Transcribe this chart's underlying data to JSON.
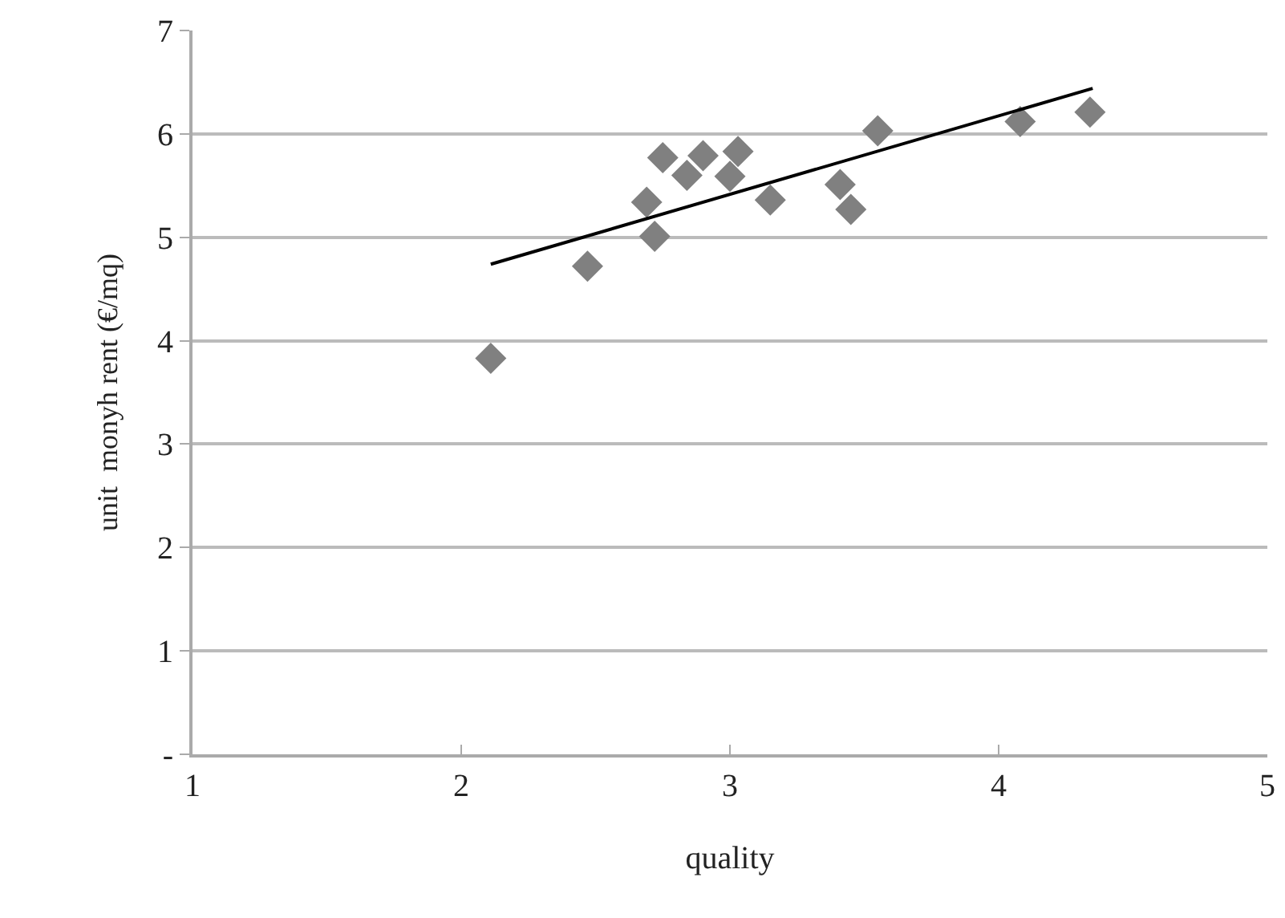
{
  "chart_data": {
    "type": "scatter",
    "xlabel": "quality",
    "ylabel": "unit  monyh rent (€/mq)",
    "xlim": [
      1,
      5
    ],
    "xticks": [
      1,
      2,
      3,
      4,
      5
    ],
    "ylim": [
      0,
      7
    ],
    "yticks": [
      {
        "value": 0,
        "label": "-"
      },
      1,
      2,
      3,
      4,
      5,
      6,
      7
    ],
    "grid": "y",
    "marker": "diamond",
    "series": [
      {
        "type": "scatter",
        "color": "#808080",
        "x": [
          2.11,
          2.47,
          2.69,
          2.72,
          2.75,
          2.84,
          2.9,
          3.0,
          3.03,
          3.15,
          3.41,
          3.45,
          3.55,
          4.08,
          4.34
        ],
        "values": [
          3.83,
          4.72,
          5.34,
          5.01,
          5.77,
          5.6,
          5.79,
          5.59,
          5.83,
          5.36,
          5.51,
          5.27,
          6.03,
          6.12,
          6.21
        ]
      },
      {
        "type": "line",
        "color": "#000000",
        "x": [
          2.11,
          4.35
        ],
        "values": [
          4.74,
          6.44
        ],
        "marker": "none",
        "line_style": "solid"
      }
    ]
  }
}
